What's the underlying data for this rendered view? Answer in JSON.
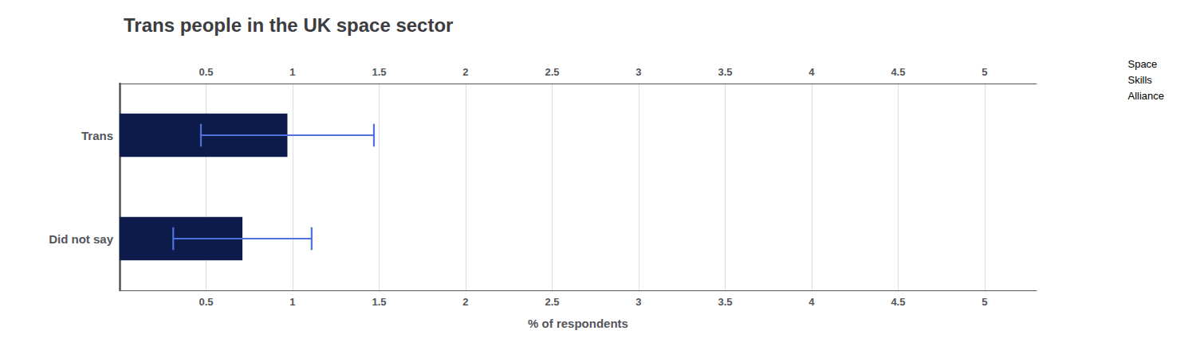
{
  "chart_data": {
    "type": "bar",
    "orientation": "horizontal",
    "title": "Trans people in the UK space sector",
    "categories": [
      "Trans",
      "Did not say"
    ],
    "values": [
      0.97,
      0.71
    ],
    "errors": [
      0.5,
      0.4
    ],
    "color": "#0d1b4b",
    "xlabel": "% of respondents",
    "xlim": [
      0,
      5.3
    ],
    "xticks": [
      0.5,
      1,
      1.5,
      2,
      2.5,
      3,
      3.5,
      4,
      4.5,
      5
    ],
    "grid": true,
    "annotations": [
      "Space\nSkills\nAlliance"
    ]
  }
}
